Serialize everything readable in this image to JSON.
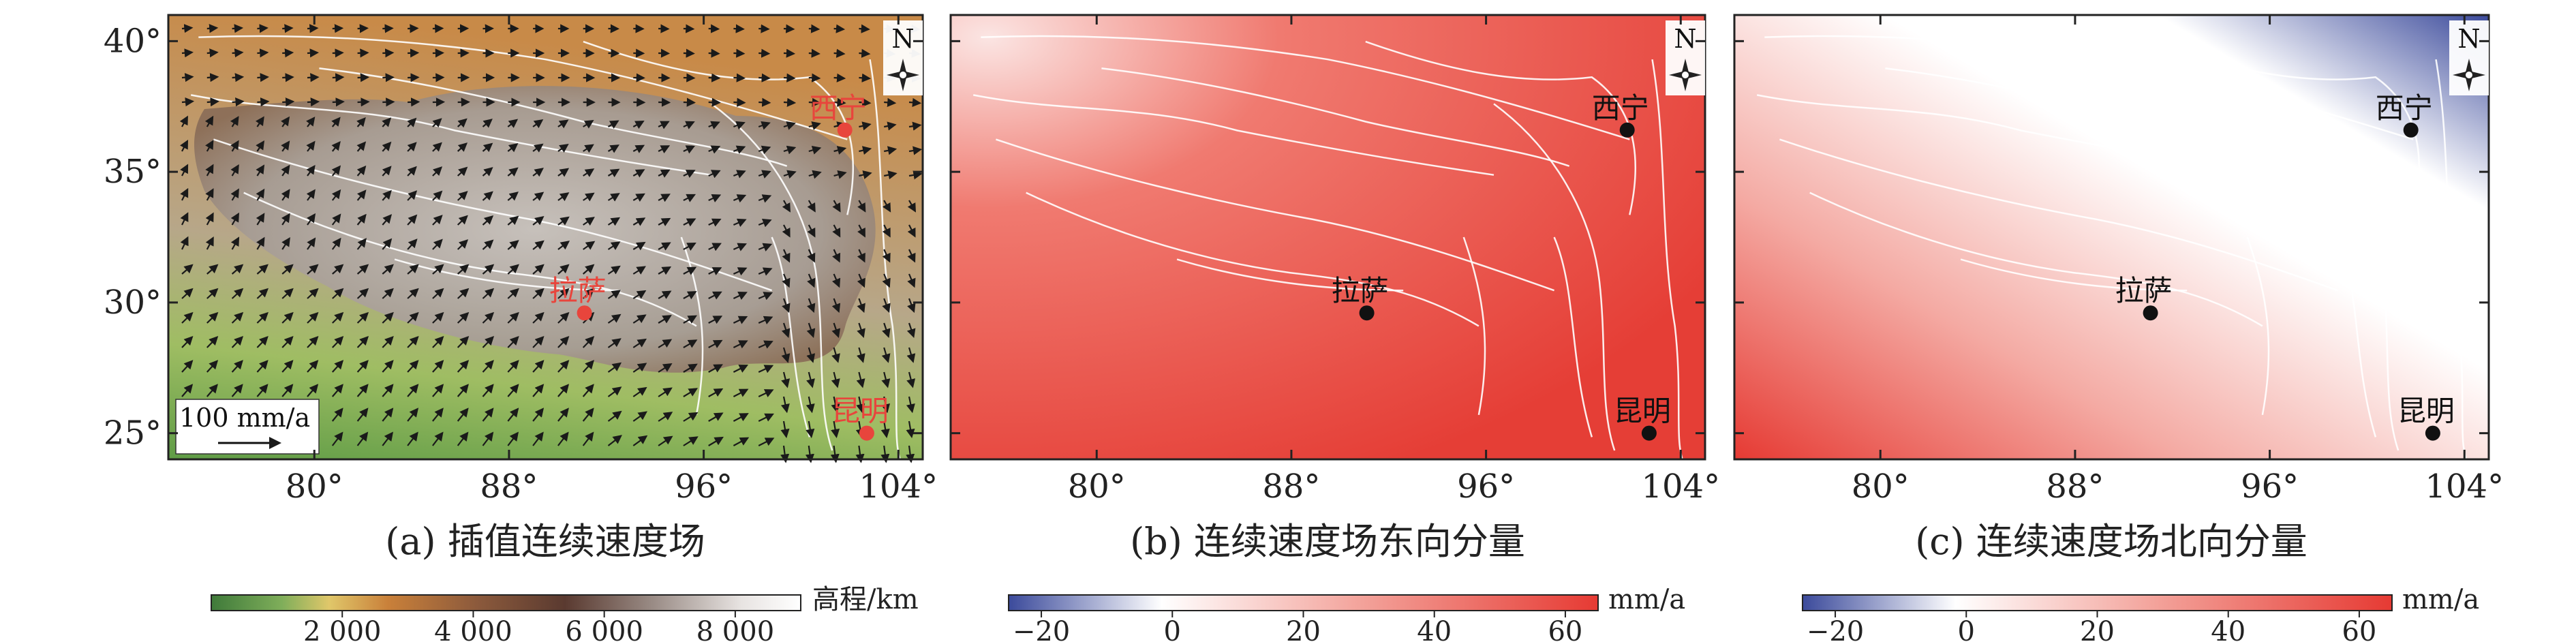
{
  "panels": [
    {
      "id": "a",
      "caption": "(a) 插值连续速度场",
      "north_label": "N",
      "x_ticks": [
        "80°",
        "88°",
        "96°",
        "104°"
      ],
      "y_ticks": [
        "40°",
        "35°",
        "30°",
        "25°"
      ],
      "scale_label": "100 mm/a",
      "cities": [
        {
          "name": "西宁",
          "lon": 101.8,
          "lat": 36.6
        },
        {
          "name": "拉萨",
          "lon": 91.1,
          "lat": 29.6
        },
        {
          "name": "昆明",
          "lon": 102.7,
          "lat": 25.0
        }
      ],
      "city_color": "#e8453c",
      "colorbar": {
        "unit": "高程/km",
        "ticks": [
          "2 000",
          "4 000",
          "6 000",
          "8 000"
        ],
        "range": [
          0,
          9000
        ]
      }
    },
    {
      "id": "b",
      "caption": "(b) 连续速度场东向分量",
      "north_label": "N",
      "x_ticks": [
        "80°",
        "88°",
        "96°",
        "104°"
      ],
      "cities": [
        {
          "name": "西宁",
          "lon": 101.8,
          "lat": 36.6
        },
        {
          "name": "拉萨",
          "lon": 91.1,
          "lat": 29.6
        },
        {
          "name": "昆明",
          "lon": 102.7,
          "lat": 25.0
        }
      ],
      "city_color": "#111111",
      "colorbar": {
        "unit": "mm/a",
        "ticks": [
          "−20",
          "0",
          "20",
          "40",
          "60"
        ],
        "range": [
          -25,
          65
        ]
      }
    },
    {
      "id": "c",
      "caption": "(c) 连续速度场北向分量",
      "north_label": "N",
      "x_ticks": [
        "80°",
        "88°",
        "96°",
        "104°"
      ],
      "cities": [
        {
          "name": "西宁",
          "lon": 101.8,
          "lat": 36.6
        },
        {
          "name": "拉萨",
          "lon": 91.1,
          "lat": 29.6
        },
        {
          "name": "昆明",
          "lon": 102.7,
          "lat": 25.0
        }
      ],
      "city_color": "#111111",
      "colorbar": {
        "unit": "mm/a",
        "ticks": [
          "−20",
          "0",
          "20",
          "40",
          "60"
        ],
        "range": [
          -25,
          65
        ]
      }
    }
  ],
  "extent": {
    "lon": [
      74,
      105
    ],
    "lat": [
      24,
      41
    ]
  },
  "x_tick_values": [
    80,
    88,
    96,
    104
  ],
  "y_tick_values": [
    40,
    35,
    30,
    25
  ],
  "colors": {
    "velocity_red": "#e8413a",
    "velocity_blue": "#3b4a9b",
    "elev_low": "#4f8f3f",
    "elev_mid": "#c6893a",
    "elev_high": "#6b4a3a",
    "elev_top": "#ffffff",
    "arrow": "#1a1a1a",
    "fault": "#ffffff"
  }
}
